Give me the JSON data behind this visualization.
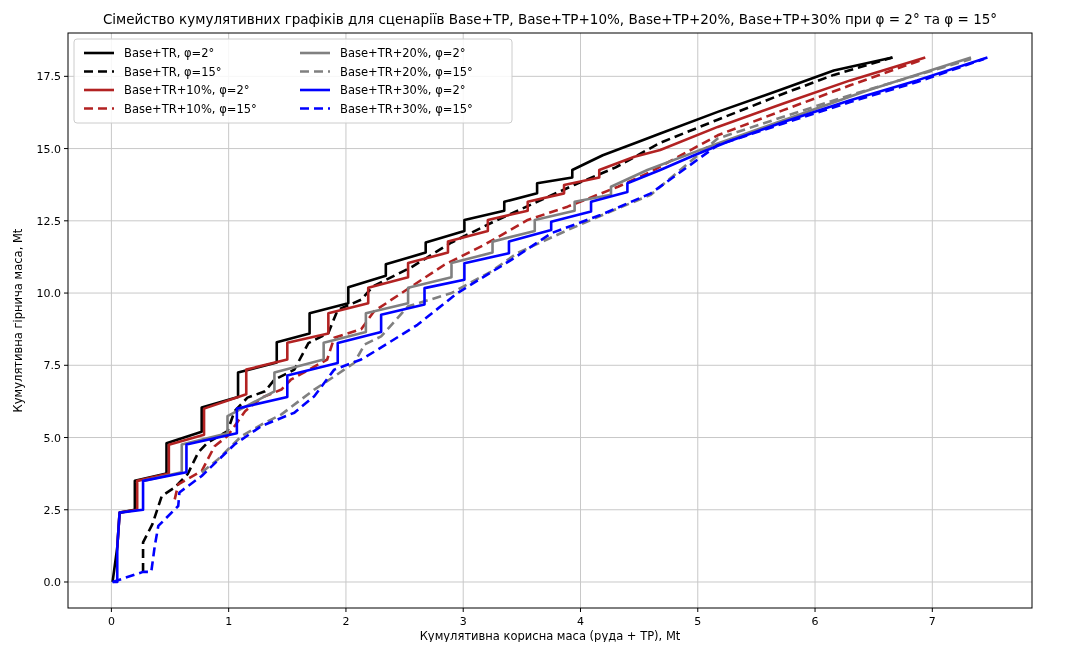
{
  "chart_data": {
    "type": "line",
    "title": "Сімейство кумулятивних графіків для сценаріїв Base+TP, Base+TP+10%, Base+TP+20%, Base+TP+30% при φ = 2° та φ = 15°",
    "xlabel": "Кумулятивна корисна маса (руда + TP), Mt",
    "ylabel": "Кумулятивна гірнича маса, Mt",
    "xlim": [
      -0.37,
      7.85
    ],
    "ylim": [
      -0.9,
      19.0
    ],
    "xticks": [
      0,
      1,
      2,
      3,
      4,
      5,
      6,
      7
    ],
    "yticks": [
      {
        "value": 0,
        "label": "0.0"
      },
      2.5,
      {
        "value": 5,
        "label": "5.0"
      },
      7.5,
      {
        "value": 10,
        "label": "10.0"
      },
      12.5,
      {
        "value": 15,
        "label": "15.0"
      },
      17.5
    ],
    "grid": true,
    "legend": "top left",
    "series": [
      {
        "name": "Base+TR, φ=2°",
        "color": "#000000",
        "line_style": "solid",
        "x": [
          0.01,
          0.05,
          0.07,
          0.2,
          0.2,
          0.47,
          0.47,
          0.77,
          0.77,
          1.08,
          1.08,
          1.41,
          1.41,
          1.69,
          1.69,
          2.02,
          2.02,
          2.34,
          2.34,
          2.68,
          2.68,
          3.01,
          3.01,
          3.35,
          3.35,
          3.63,
          3.63,
          3.93,
          3.93,
          4.19,
          4.49,
          4.68,
          5.17,
          5.73,
          6.16,
          6.66
        ],
        "values": [
          0,
          1.2,
          2.4,
          2.5,
          3.5,
          3.75,
          4.8,
          5.2,
          6.04,
          6.4,
          7.25,
          7.6,
          8.3,
          8.6,
          9.3,
          9.65,
          10.2,
          10.6,
          11.0,
          11.4,
          11.75,
          12.15,
          12.53,
          12.85,
          13.16,
          13.45,
          13.8,
          14.0,
          14.26,
          14.77,
          15.23,
          15.52,
          16.27,
          17.07,
          17.7,
          18.15
        ]
      },
      {
        "name": "Base+TR, φ=15°",
        "color": "#000000",
        "line_style": "dashed",
        "x": [
          0.27,
          0.27,
          0.35,
          0.43,
          0.54,
          0.65,
          0.74,
          0.82,
          0.99,
          1.05,
          1.16,
          1.31,
          1.39,
          1.56,
          1.68,
          1.85,
          1.93,
          2.13,
          2.23,
          2.56,
          2.9,
          3.25,
          3.6,
          3.95,
          4.3,
          4.68,
          5.17,
          5.73,
          6.16,
          6.66
        ],
        "values": [
          0.35,
          1.37,
          2.0,
          2.98,
          3.27,
          3.73,
          4.48,
          4.82,
          5.22,
          5.91,
          6.38,
          6.6,
          7.0,
          7.35,
          8.27,
          8.62,
          9.42,
          9.77,
          10.23,
          10.9,
          11.75,
          12.45,
          13.1,
          13.75,
          14.35,
          15.2,
          16.0,
          16.9,
          17.55,
          18.15
        ]
      },
      {
        "name": "Base+TR+10%, φ=2°",
        "color": "#b22222",
        "line_style": "solid",
        "x": [
          0.05,
          0.07,
          0.22,
          0.22,
          0.49,
          0.49,
          0.79,
          0.79,
          1.15,
          1.15,
          1.5,
          1.5,
          1.85,
          1.85,
          2.19,
          2.19,
          2.53,
          2.53,
          2.87,
          2.87,
          3.21,
          3.21,
          3.55,
          3.55,
          3.86,
          3.86,
          4.16,
          4.16,
          4.46,
          4.68,
          5.17,
          5.73,
          6.3,
          6.94
        ],
        "values": [
          1.2,
          2.4,
          2.5,
          3.5,
          3.75,
          4.75,
          5.1,
          6.0,
          6.5,
          7.35,
          7.7,
          8.28,
          8.6,
          9.3,
          9.65,
          10.18,
          10.55,
          11.04,
          11.4,
          11.78,
          12.15,
          12.53,
          12.85,
          13.16,
          13.45,
          13.74,
          14.0,
          14.26,
          14.72,
          14.95,
          15.75,
          16.56,
          17.36,
          18.15
        ]
      },
      {
        "name": "Base+TR+10%, φ=15°",
        "color": "#b22222",
        "line_style": "dashed",
        "x": [
          0.54,
          0.57,
          0.77,
          0.88,
          0.99,
          1.14,
          1.28,
          1.45,
          1.53,
          1.84,
          1.9,
          2.13,
          2.24,
          2.56,
          2.84,
          3.18,
          3.55,
          3.89,
          4.32,
          4.6,
          5.17,
          5.73,
          6.3,
          6.93
        ],
        "values": [
          2.86,
          3.38,
          3.84,
          4.7,
          5.05,
          5.91,
          6.38,
          6.66,
          7.0,
          7.7,
          8.45,
          8.75,
          9.37,
          10.23,
          10.98,
          11.67,
          12.53,
          12.99,
          13.68,
          14.2,
          15.46,
          16.33,
          17.19,
          18.1
        ]
      },
      {
        "name": "Base+TR+20%, φ=2°",
        "color": "#808080",
        "line_style": "solid",
        "x": [
          0.27,
          0.6,
          0.6,
          0.99,
          0.99,
          1.39,
          1.39,
          1.81,
          1.81,
          2.17,
          2.17,
          2.53,
          2.53,
          2.9,
          2.9,
          3.25,
          3.25,
          3.61,
          3.61,
          3.95,
          3.95,
          4.26,
          4.26,
          4.57,
          5.17,
          5.73,
          6.44,
          7.33
        ],
        "values": [
          3.5,
          3.8,
          4.76,
          5.15,
          5.74,
          6.6,
          7.25,
          7.7,
          8.28,
          8.65,
          9.3,
          9.65,
          10.18,
          10.55,
          11.04,
          11.4,
          11.78,
          12.15,
          12.53,
          12.85,
          13.16,
          13.4,
          13.68,
          14.26,
          15.18,
          15.98,
          17.0,
          18.15
        ]
      },
      {
        "name": "Base+TR+20%, φ=15°",
        "color": "#808080",
        "line_style": "dashed",
        "x": [
          0.77,
          0.91,
          1.11,
          1.28,
          1.45,
          1.73,
          1.84,
          2.07,
          2.16,
          2.3,
          2.53,
          2.9,
          3.24,
          3.46,
          3.89,
          4.32,
          4.6,
          5.17,
          5.73,
          6.3,
          7.33
        ],
        "values": [
          3.79,
          4.25,
          5.05,
          5.45,
          5.8,
          6.66,
          6.95,
          7.58,
          8.22,
          8.5,
          9.54,
          10.0,
          10.75,
          11.38,
          12.18,
          12.93,
          13.4,
          15.35,
          16.1,
          16.85,
          18.1
        ]
      },
      {
        "name": "Base+TR+30%, φ=2°",
        "color": "#0000ff",
        "line_style": "solid",
        "x": [
          0.01,
          0.05,
          0.05,
          0.07,
          0.27,
          0.27,
          0.64,
          0.64,
          1.07,
          1.07,
          1.5,
          1.5,
          1.93,
          1.93,
          2.3,
          2.3,
          2.67,
          2.67,
          3.01,
          3.01,
          3.39,
          3.39,
          3.75,
          3.75,
          4.09,
          4.09,
          4.4,
          4.4,
          4.68,
          4.97,
          5.25,
          5.73,
          6.3,
          6.87,
          7.47
        ],
        "values": [
          0,
          0,
          1.2,
          2.4,
          2.5,
          3.5,
          3.8,
          4.76,
          5.15,
          6.0,
          6.4,
          7.15,
          7.58,
          8.27,
          8.65,
          9.25,
          9.6,
          10.17,
          10.46,
          11.03,
          11.38,
          11.78,
          12.18,
          12.47,
          12.82,
          13.16,
          13.5,
          13.8,
          14.26,
          14.77,
          15.23,
          15.92,
          16.67,
          17.36,
          18.15
        ]
      },
      {
        "name": "Base+TR+30%, φ=15°",
        "color": "#0000ff",
        "line_style": "dashed",
        "x": [
          0.01,
          0.27,
          0.34,
          0.37,
          0.4,
          0.57,
          0.58,
          0.77,
          1.05,
          1.28,
          1.56,
          1.73,
          1.9,
          2.13,
          2.27,
          2.61,
          2.95,
          3.41,
          3.75,
          4.17,
          4.6,
          5.17,
          5.73,
          6.3,
          6.87,
          7.44
        ],
        "values": [
          0,
          0.35,
          0.35,
          1.25,
          1.94,
          2.63,
          3.1,
          3.67,
          4.76,
          5.4,
          5.86,
          6.43,
          7.35,
          7.7,
          8.04,
          8.9,
          10.0,
          11.15,
          12.07,
          12.7,
          13.45,
          15.12,
          15.87,
          16.61,
          17.3,
          18.1
        ]
      }
    ]
  }
}
